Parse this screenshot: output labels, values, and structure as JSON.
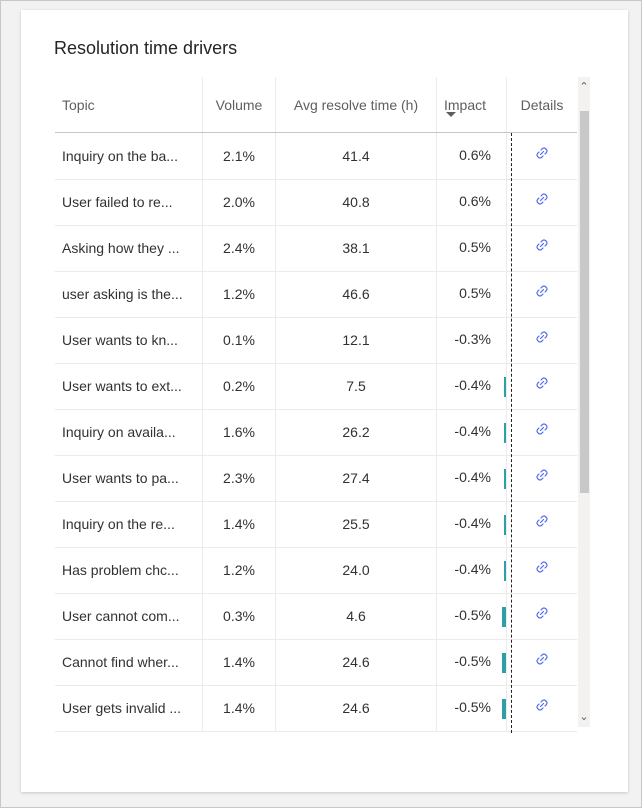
{
  "card": {
    "title": "Resolution time drivers"
  },
  "table": {
    "columns": {
      "topic": "Topic",
      "volume": "Volume",
      "avg": "Avg resolve time (h)",
      "impact": "Impact",
      "details": "Details"
    },
    "rows": [
      {
        "topic": "Inquiry on the ba...",
        "volume": "2.1%",
        "avg": "41.4",
        "impact": "0.6%",
        "impact_value": 0.6
      },
      {
        "topic": "User failed to re...",
        "volume": "2.0%",
        "avg": "40.8",
        "impact": "0.6%",
        "impact_value": 0.6
      },
      {
        "topic": "Asking how they ...",
        "volume": "2.4%",
        "avg": "38.1",
        "impact": "0.5%",
        "impact_value": 0.5
      },
      {
        "topic": "user asking is the...",
        "volume": "1.2%",
        "avg": "46.6",
        "impact": "0.5%",
        "impact_value": 0.5
      },
      {
        "topic": "User wants to kn...",
        "volume": "0.1%",
        "avg": "12.1",
        "impact": "-0.3%",
        "impact_value": -0.3
      },
      {
        "topic": "User wants to ext...",
        "volume": "0.2%",
        "avg": "7.5",
        "impact": "-0.4%",
        "impact_value": -0.4
      },
      {
        "topic": "Inquiry on availa...",
        "volume": "1.6%",
        "avg": "26.2",
        "impact": "-0.4%",
        "impact_value": -0.4
      },
      {
        "topic": "User wants to pa...",
        "volume": "2.3%",
        "avg": "27.4",
        "impact": "-0.4%",
        "impact_value": -0.4
      },
      {
        "topic": "Inquiry on the re...",
        "volume": "1.4%",
        "avg": "25.5",
        "impact": "-0.4%",
        "impact_value": -0.4
      },
      {
        "topic": "Has problem chc...",
        "volume": "1.2%",
        "avg": "24.0",
        "impact": "-0.4%",
        "impact_value": -0.4
      },
      {
        "topic": "User cannot com...",
        "volume": "0.3%",
        "avg": "4.6",
        "impact": "-0.5%",
        "impact_value": -0.5
      },
      {
        "topic": "Cannot find wher...",
        "volume": "1.4%",
        "avg": "24.6",
        "impact": "-0.5%",
        "impact_value": -0.5
      },
      {
        "topic": "User gets invalid ...",
        "volume": "1.4%",
        "avg": "24.6",
        "impact": "-0.5%",
        "impact_value": -0.5
      }
    ],
    "sort": {
      "column": "impact",
      "direction": "descending"
    }
  },
  "colors": {
    "positive": "#c4399a",
    "negative": "#2e9fa6",
    "link": "#4f6bed"
  },
  "icons": {
    "details": "link-icon",
    "sort": "sort-descending-icon",
    "scroll_up": "chevron-up-icon",
    "scroll_down": "chevron-down-icon"
  }
}
